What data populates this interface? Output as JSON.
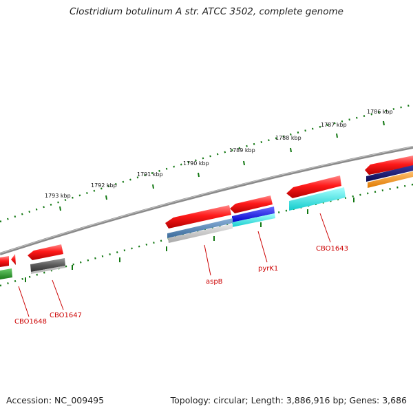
{
  "header": {
    "title": "Clostridium botulinum A str. ATCC 3502, complete genome"
  },
  "footer": {
    "accession": "Accession: NC_009495",
    "summary": "Topology: circular; Length: 3,886,916 bp; Genes: 3,686"
  },
  "ruler": {
    "unit": "kbp",
    "labels": [
      "1786 kbp",
      "1787 kbp",
      "1788 kbp",
      "1789 kbp",
      "1790 kbp",
      "1791 kbp",
      "1792 kbp",
      "1793 kbp"
    ]
  },
  "genes": [
    {
      "name": "CBO1643"
    },
    {
      "name": "pyrK1"
    },
    {
      "name": "aspB"
    },
    {
      "name": "CBO1647"
    },
    {
      "name": "CBO1648"
    }
  ],
  "colors": {
    "gene_red": "#ee1111",
    "tick_green": "#117711",
    "backbone_gray": "#888888",
    "label_red": "#cc0000",
    "steel_blue": "#4f7fb0",
    "blue": "#1a1aee",
    "cyan": "#22eeee",
    "navy": "#1a1a66",
    "orange": "#ff9922",
    "dark_gray": "#555555",
    "light_gray": "#bdbdbd",
    "green": "#2a9a2a"
  }
}
